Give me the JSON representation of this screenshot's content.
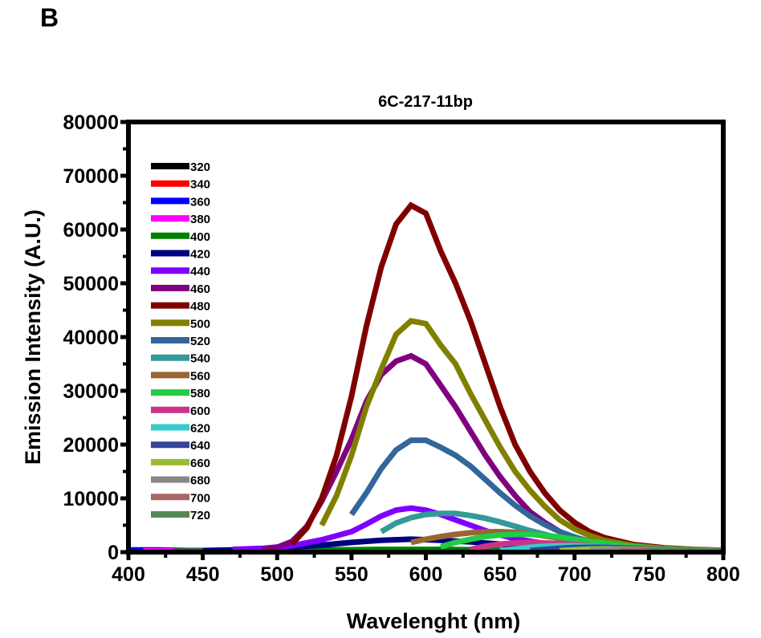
{
  "panel_label": "B",
  "chart_data": {
    "type": "line",
    "title": "6C-217-11bp",
    "xlabel": "Wavelenght (nm)",
    "ylabel": "Emission Intensity (A.U.)",
    "xlim": [
      400,
      800
    ],
    "ylim": [
      0,
      80000
    ],
    "x_ticks": [
      400,
      450,
      500,
      550,
      600,
      650,
      700,
      750,
      800
    ],
    "y_ticks": [
      0,
      10000,
      20000,
      30000,
      40000,
      50000,
      60000,
      70000,
      80000
    ],
    "grid": false,
    "legend_position": "top-left",
    "series": [
      {
        "name": "320",
        "color": "#000000",
        "x": [
          400,
          420,
          440,
          460,
          480,
          500,
          520,
          540,
          560,
          580,
          600,
          620,
          640,
          660,
          680,
          700,
          720,
          740,
          760,
          780,
          800
        ],
        "y": [
          300,
          300,
          250,
          250,
          250,
          250,
          250,
          250,
          250,
          250,
          250,
          250,
          250,
          250,
          250,
          250,
          250,
          250,
          250,
          250,
          250
        ]
      },
      {
        "name": "340",
        "color": "#ff0000",
        "x": [
          410,
          430,
          450,
          470,
          490,
          510,
          530,
          550,
          570,
          590,
          610,
          630,
          650,
          670,
          690,
          710,
          730,
          750,
          770,
          790,
          800
        ],
        "y": [
          250,
          250,
          250,
          250,
          250,
          250,
          250,
          250,
          250,
          250,
          250,
          250,
          250,
          250,
          250,
          250,
          250,
          250,
          250,
          250,
          250
        ]
      },
      {
        "name": "360",
        "color": "#0000ff",
        "x": [
          400,
          420,
          440,
          460,
          480,
          500,
          520,
          540,
          560,
          580,
          600,
          620,
          640,
          660,
          680,
          700,
          720,
          740,
          760,
          780,
          800
        ],
        "y": [
          400,
          400,
          300,
          300,
          300,
          300,
          300,
          300,
          300,
          300,
          300,
          300,
          300,
          300,
          300,
          300,
          300,
          300,
          300,
          300,
          300
        ]
      },
      {
        "name": "380",
        "color": "#ff00ff",
        "x": [
          410,
          430,
          450,
          470,
          490,
          510,
          530,
          550,
          570,
          590,
          610,
          630,
          650,
          670,
          690,
          710,
          730,
          750,
          770,
          790,
          800
        ],
        "y": [
          250,
          250,
          250,
          250,
          250,
          250,
          250,
          250,
          250,
          250,
          250,
          250,
          250,
          250,
          250,
          250,
          250,
          250,
          250,
          250,
          250
        ]
      },
      {
        "name": "400",
        "color": "#008000",
        "x": [
          430,
          450,
          470,
          490,
          510,
          530,
          550,
          570,
          590,
          610,
          630,
          650,
          670,
          690,
          710,
          730,
          750,
          770,
          790,
          800
        ],
        "y": [
          200,
          200,
          250,
          300,
          350,
          400,
          450,
          500,
          500,
          500,
          450,
          400,
          350,
          300,
          300,
          250,
          250,
          250,
          250,
          250
        ]
      },
      {
        "name": "420",
        "color": "#000080",
        "x": [
          450,
          470,
          490,
          510,
          530,
          550,
          570,
          590,
          610,
          630,
          650,
          670,
          690,
          710,
          730,
          750,
          770,
          790,
          800
        ],
        "y": [
          300,
          400,
          600,
          900,
          1300,
          1800,
          2200,
          2400,
          2200,
          1900,
          1500,
          1100,
          800,
          600,
          450,
          350,
          300,
          250,
          250
        ]
      },
      {
        "name": "440",
        "color": "#8000ff",
        "x": [
          470,
          490,
          510,
          530,
          550,
          560,
          570,
          580,
          590,
          600,
          610,
          620,
          630,
          640,
          650,
          660,
          680,
          700,
          720,
          740,
          760,
          780,
          800
        ],
        "y": [
          500,
          700,
          1200,
          2300,
          3800,
          5200,
          6700,
          7800,
          8200,
          7800,
          7000,
          6000,
          5000,
          4000,
          3200,
          2500,
          1600,
          1000,
          700,
          500,
          400,
          300,
          250
        ]
      },
      {
        "name": "460",
        "color": "#800080",
        "x": [
          490,
          500,
          510,
          520,
          530,
          540,
          550,
          560,
          570,
          580,
          590,
          600,
          610,
          620,
          630,
          640,
          650,
          660,
          670,
          680,
          690,
          700,
          720,
          740,
          760,
          780,
          800
        ],
        "y": [
          500,
          900,
          2000,
          4800,
          9500,
          15000,
          21000,
          28000,
          33000,
          35500,
          36500,
          35000,
          31000,
          27000,
          22500,
          18000,
          14000,
          10500,
          7500,
          5500,
          3800,
          2700,
          1400,
          800,
          500,
          350,
          250
        ]
      },
      {
        "name": "480",
        "color": "#800000",
        "x": [
          510,
          520,
          530,
          540,
          550,
          560,
          570,
          580,
          590,
          600,
          610,
          620,
          630,
          640,
          650,
          660,
          670,
          680,
          690,
          700,
          710,
          720,
          740,
          760,
          780,
          800
        ],
        "y": [
          1500,
          4500,
          10000,
          18000,
          29000,
          42000,
          53000,
          61000,
          64500,
          63000,
          56000,
          50000,
          43000,
          35000,
          27000,
          20000,
          15000,
          11000,
          7800,
          5500,
          3800,
          2700,
          1400,
          800,
          500,
          350
        ]
      },
      {
        "name": "500",
        "color": "#808000",
        "x": [
          530,
          540,
          550,
          560,
          570,
          580,
          590,
          600,
          610,
          620,
          630,
          640,
          650,
          660,
          670,
          680,
          690,
          700,
          710,
          720,
          740,
          760,
          780,
          800
        ],
        "y": [
          5000,
          10500,
          18000,
          27000,
          34000,
          40500,
          43000,
          42500,
          38500,
          35000,
          29500,
          24500,
          19500,
          15000,
          11500,
          8500,
          6000,
          4300,
          3100,
          2200,
          1200,
          700,
          450,
          300
        ]
      },
      {
        "name": "520",
        "color": "#336699",
        "x": [
          550,
          560,
          570,
          580,
          590,
          600,
          610,
          620,
          630,
          640,
          650,
          660,
          670,
          680,
          690,
          700,
          710,
          720,
          740,
          760,
          780,
          800
        ],
        "y": [
          7000,
          11000,
          15500,
          19000,
          20800,
          20800,
          19500,
          18000,
          16000,
          13500,
          11000,
          8700,
          6700,
          5100,
          3800,
          2800,
          2000,
          1500,
          800,
          500,
          350,
          250
        ]
      },
      {
        "name": "540",
        "color": "#339999",
        "x": [
          570,
          580,
          590,
          600,
          610,
          620,
          630,
          640,
          650,
          660,
          670,
          680,
          690,
          700,
          720,
          740,
          760,
          780,
          800
        ],
        "y": [
          3800,
          5400,
          6400,
          7000,
          7200,
          7200,
          6800,
          6300,
          5600,
          4800,
          4000,
          3300,
          2600,
          2000,
          1200,
          700,
          450,
          300,
          250
        ]
      },
      {
        "name": "560",
        "color": "#996633",
        "x": [
          590,
          600,
          610,
          620,
          630,
          640,
          650,
          660,
          670,
          680,
          690,
          700,
          720,
          740,
          760,
          780,
          800
        ],
        "y": [
          1800,
          2400,
          2900,
          3300,
          3600,
          3800,
          3800,
          3700,
          3400,
          3000,
          2600,
          2200,
          1500,
          900,
          600,
          400,
          300
        ]
      },
      {
        "name": "580",
        "color": "#22cc44",
        "x": [
          610,
          620,
          630,
          640,
          650,
          660,
          670,
          680,
          690,
          700,
          710,
          720,
          740,
          760,
          780,
          800
        ],
        "y": [
          1000,
          1800,
          2400,
          2900,
          3200,
          3300,
          3300,
          3100,
          2800,
          2400,
          2000,
          1700,
          1000,
          600,
          400,
          300
        ]
      },
      {
        "name": "600",
        "color": "#cc3388",
        "x": [
          630,
          640,
          650,
          660,
          670,
          680,
          690,
          700,
          710,
          720,
          740,
          760,
          780,
          800
        ],
        "y": [
          500,
          1100,
          1500,
          1700,
          1800,
          1700,
          1600,
          1400,
          1200,
          1000,
          700,
          450,
          300,
          250
        ]
      },
      {
        "name": "620",
        "color": "#33cccc",
        "x": [
          650,
          660,
          670,
          680,
          690,
          700,
          710,
          720,
          740,
          760,
          780,
          800
        ],
        "y": [
          300,
          600,
          900,
          1100,
          1200,
          1200,
          1100,
          1000,
          700,
          500,
          350,
          250
        ]
      },
      {
        "name": "640",
        "color": "#334499",
        "x": [
          670,
          680,
          690,
          700,
          710,
          720,
          740,
          760,
          780,
          800
        ],
        "y": [
          300,
          500,
          700,
          850,
          900,
          900,
          700,
          500,
          350,
          250
        ]
      },
      {
        "name": "660",
        "color": "#99bb33",
        "x": [
          690,
          700,
          710,
          720,
          740,
          760,
          780,
          800
        ],
        "y": [
          300,
          450,
          550,
          600,
          550,
          450,
          350,
          250
        ]
      },
      {
        "name": "680",
        "color": "#888888",
        "x": [
          710,
          720,
          730,
          740,
          760,
          780,
          800
        ],
        "y": [
          250,
          350,
          450,
          450,
          400,
          350,
          250
        ]
      },
      {
        "name": "700",
        "color": "#aa6666",
        "x": [
          730,
          740,
          750,
          760,
          780,
          800
        ],
        "y": [
          250,
          300,
          400,
          400,
          350,
          250
        ]
      },
      {
        "name": "720",
        "color": "#558855",
        "x": [
          750,
          760,
          770,
          780,
          790,
          800
        ],
        "y": [
          250,
          300,
          350,
          350,
          300,
          250
        ]
      }
    ]
  }
}
